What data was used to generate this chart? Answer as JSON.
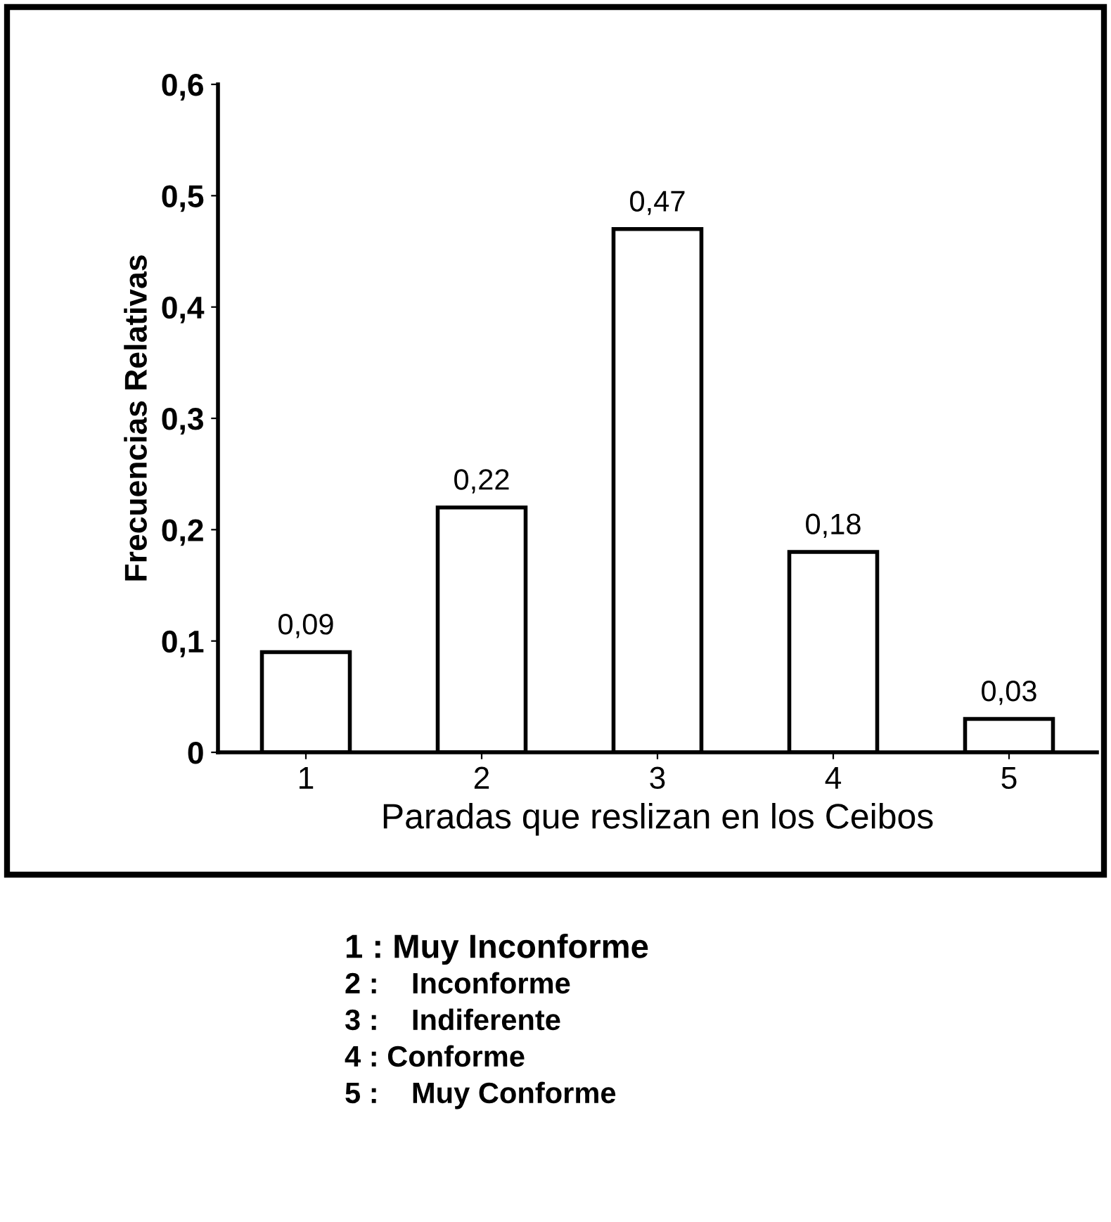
{
  "chart_data": {
    "type": "bar",
    "categories": [
      "1",
      "2",
      "3",
      "4",
      "5"
    ],
    "values": [
      0.09,
      0.22,
      0.47,
      0.18,
      0.03
    ],
    "value_labels": [
      "0,09",
      "0,22",
      "0,47",
      "0,18",
      "0,03"
    ],
    "color": "#ffffff",
    "xlabel": "Paradas que reslizan en los Ceibos",
    "ylabel": "Frecuencias Relativas",
    "ylim": [
      0,
      0.6
    ],
    "yticks": [
      {
        "value": 0,
        "label": "0"
      },
      {
        "value": 0.1,
        "label": "0,1"
      },
      {
        "value": 0.2,
        "label": "0,2"
      },
      {
        "value": 0.3,
        "label": "0,3"
      },
      {
        "value": 0.4,
        "label": "0,4"
      },
      {
        "value": 0.5,
        "label": "0,5"
      },
      {
        "value": 0.6,
        "label": "0,6"
      }
    ],
    "grid": false,
    "legend": false,
    "annotations": [
      "1 : Muy Inconforme",
      "2 :    Inconforme",
      "3 :    Indiferente",
      "4 : Conforme",
      "5 :    Muy Conforme"
    ]
  }
}
